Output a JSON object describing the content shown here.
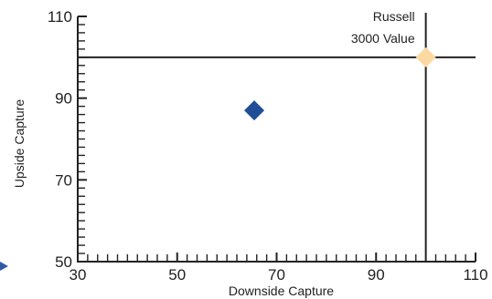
{
  "chart_data": {
    "type": "scatter",
    "xlabel": "Downside Capture",
    "ylabel": "Upside Capture",
    "xlim": [
      30,
      110
    ],
    "ylim": [
      50,
      110
    ],
    "x_ticks": [
      30,
      50,
      70,
      90,
      110
    ],
    "y_ticks": [
      50,
      70,
      90,
      110
    ],
    "minor_tick_step": 2,
    "grid": false,
    "reference_lines": {
      "x": 100,
      "y": 100
    },
    "points": [
      {
        "x": 65.5,
        "y": 87,
        "color": "#1f4e96",
        "marker": "diamond"
      },
      {
        "x": 100,
        "y": 100,
        "color": "#fbd9a0",
        "marker": "diamond"
      }
    ],
    "annotations": [
      {
        "lines": [
          "Russell",
          "3000 Value"
        ],
        "x": 100,
        "y": 100
      }
    ],
    "colors": {
      "axis": "#222222",
      "highlight_marker": "#1f4e96",
      "benchmark_marker": "#fbd9a0",
      "edge_arrow": "#2e5aa8"
    }
  }
}
